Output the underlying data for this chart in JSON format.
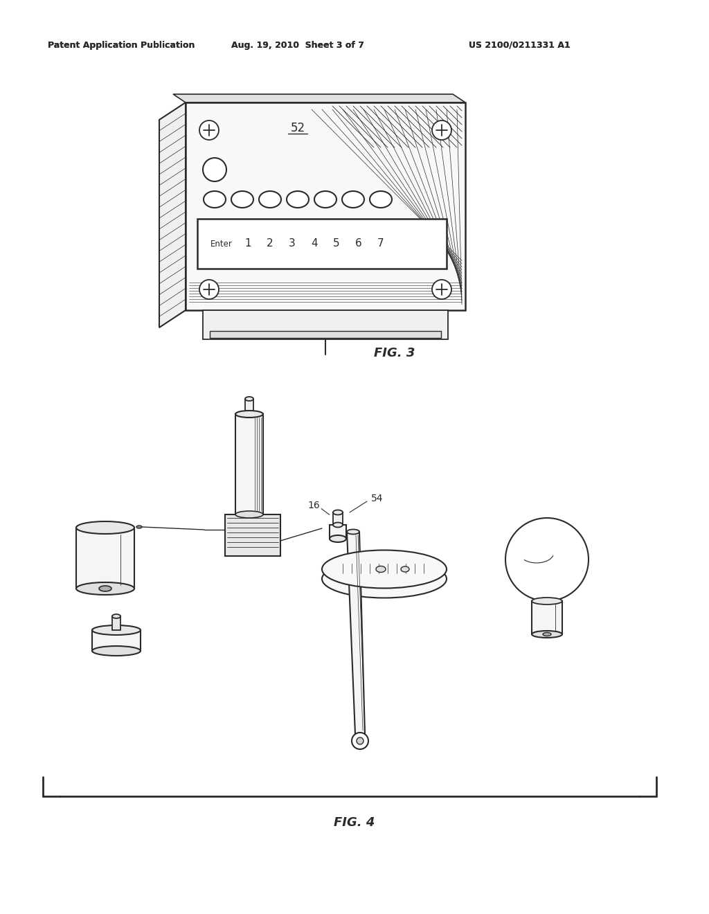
{
  "background_color": "#ffffff",
  "header_left": "Patent Application Publication",
  "header_center": "Aug. 19, 2010  Sheet 3 of 7",
  "header_right": "US 2100/0211331 A1",
  "fig3_label": "FIG. 3",
  "fig4_label": "FIG. 4",
  "label_52": "52",
  "label_16": "16",
  "label_54": "54",
  "line_color": "#2a2a2a",
  "fig_label_fontsize": 13,
  "header_fontsize": 9.5
}
